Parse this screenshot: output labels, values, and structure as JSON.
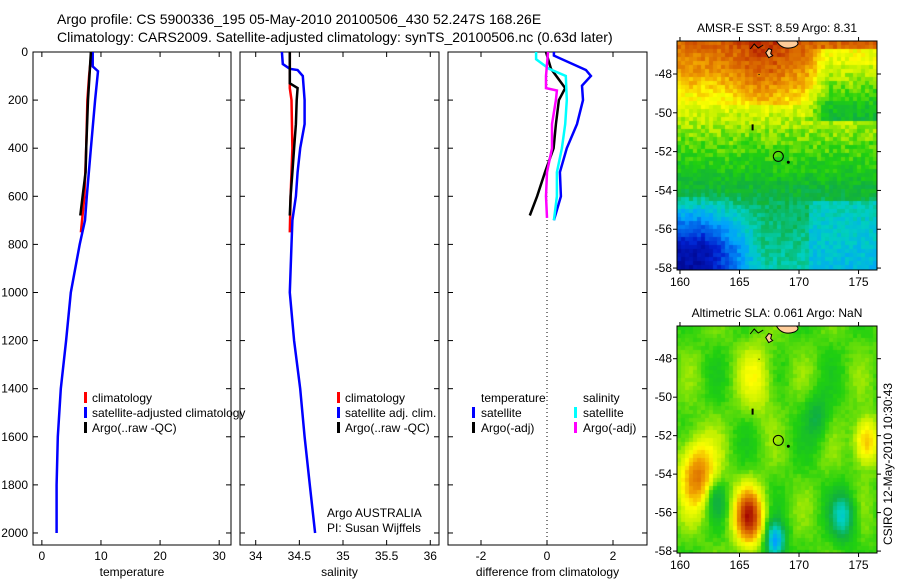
{
  "figure": {
    "title_line1": "Argo profile: CS 5900336_195 05-May-2010 20100506_430 52.247S 168.26E",
    "title_line2": "Climatology: CARS2009. Satellite-adjusted climatology: synTS_20100506.nc (0.63d later)",
    "footer_rotated": "CSIRO 12-May-2010 10:30:43",
    "credit_line1": "Argo AUSTRALIA",
    "credit_line2": "PI: Susan Wijffels"
  },
  "colors": {
    "climatology": "#ff0000",
    "satellite": "#0000ff",
    "argo": "#000000",
    "sal_satellite": "#00ffff",
    "sal_argo": "#ff00ff"
  },
  "chart_data": [
    {
      "type": "line",
      "id": "temperature",
      "xlabel": "temperature",
      "ylabel": "",
      "xlim": [
        -1.5,
        32
      ],
      "ylim": [
        0,
        2050
      ],
      "y_reversed": true,
      "xticks": [
        0,
        10,
        20,
        30
      ],
      "xtick_labels": [
        "0",
        "10",
        "20",
        "30"
      ],
      "yticks": [
        0,
        200,
        400,
        600,
        800,
        1000,
        1200,
        1400,
        1600,
        1800,
        2000
      ],
      "ytick_labels": [
        "0",
        "200",
        "400",
        "600",
        "800",
        "1000",
        "1200",
        "1400",
        "1600",
        "1800",
        "2000"
      ],
      "legend": [
        "climatology",
        "satellite-adjusted climatology",
        "Argo(..raw -QC)"
      ],
      "series": [
        {
          "name": "climatology",
          "color": "#ff0000",
          "depth": [
            0,
            100,
            200,
            400,
            600,
            750
          ],
          "values": [
            8.4,
            8.0,
            7.7,
            7.5,
            7.2,
            6.6
          ]
        },
        {
          "name": "satellite-adjusted climatology",
          "color": "#0000ff",
          "depth": [
            0,
            60,
            80,
            200,
            400,
            600,
            700,
            800,
            1000,
            1200,
            1400,
            1600,
            1800,
            2000
          ],
          "values": [
            8.6,
            8.6,
            9.5,
            9.0,
            8.3,
            7.6,
            7.3,
            6.4,
            4.9,
            4.1,
            3.2,
            2.7,
            2.5,
            2.5
          ]
        },
        {
          "name": "Argo(..raw -QC)",
          "color": "#000000",
          "depth": [
            0,
            200,
            400,
            500,
            600,
            680
          ],
          "values": [
            8.3,
            7.8,
            7.5,
            7.4,
            6.9,
            6.5
          ]
        }
      ]
    },
    {
      "type": "line",
      "id": "salinity",
      "xlabel": "salinity",
      "xlim": [
        33.82,
        36.1
      ],
      "ylim": [
        0,
        2050
      ],
      "y_reversed": true,
      "xticks": [
        34,
        34.5,
        35,
        35.5,
        36
      ],
      "xtick_labels": [
        "34",
        "34.5",
        "35",
        "35.5",
        "36"
      ],
      "legend": [
        "climatology",
        "satellite adj. clim.",
        "Argo(..raw -QC)"
      ],
      "series": [
        {
          "name": "climatology",
          "color": "#ff0000",
          "depth": [
            0,
            150,
            200,
            400,
            600,
            750
          ],
          "values": [
            34.39,
            34.39,
            34.41,
            34.42,
            34.4,
            34.39
          ]
        },
        {
          "name": "satellite adj. clim.",
          "color": "#0000ff",
          "depth": [
            0,
            50,
            70,
            75,
            100,
            200,
            300,
            400,
            500,
            600,
            700,
            800,
            1000,
            1200,
            1400,
            1600,
            1800,
            2000
          ],
          "values": [
            34.3,
            34.31,
            34.39,
            34.48,
            34.54,
            34.56,
            34.56,
            34.51,
            34.48,
            34.46,
            34.42,
            34.41,
            34.39,
            34.44,
            34.51,
            34.56,
            34.62,
            34.68
          ]
        },
        {
          "name": "Argo(..raw -QC)",
          "color": "#000000",
          "depth": [
            0,
            130,
            150,
            200,
            300,
            400,
            500,
            600,
            680
          ],
          "values": [
            34.39,
            34.39,
            34.48,
            34.47,
            34.46,
            34.44,
            34.42,
            34.4,
            34.39
          ]
        }
      ]
    },
    {
      "type": "line",
      "id": "difference",
      "xlabel": "difference from climatology",
      "xlim": [
        -3,
        3.03
      ],
      "ylim": [
        0,
        2050
      ],
      "y_reversed": true,
      "xticks": [
        -2,
        0,
        2
      ],
      "xtick_labels": [
        "-2",
        "0",
        "2"
      ],
      "zero_line": "dotted",
      "legend_headers": [
        "temperature",
        "salinity"
      ],
      "legend": [
        "satellite",
        "Argo(-adj)",
        "satellite",
        "Argo(-adj)"
      ],
      "series": [
        {
          "name": "temperature satellite",
          "color": "#0000ff",
          "depth": [
            0,
            15,
            75,
            100,
            140,
            200,
            300,
            400,
            500,
            600,
            700
          ],
          "values": [
            0.21,
            0.21,
            1.18,
            1.33,
            1.06,
            1.09,
            0.91,
            0.6,
            0.39,
            0.42,
            0.21
          ]
        },
        {
          "name": "temperature Argo(-adj)",
          "color": "#000000",
          "depth": [
            0,
            70,
            150,
            200,
            300,
            400,
            500,
            600,
            680
          ],
          "values": [
            -0.03,
            0.12,
            0.55,
            0.36,
            0.27,
            0.2,
            -0.06,
            -0.3,
            -0.52
          ]
        },
        {
          "name": "salinity satellite",
          "color": "#00ffff",
          "depth": [
            0,
            30,
            70,
            100,
            200,
            300,
            400,
            500,
            600,
            700
          ],
          "values": [
            -0.33,
            -0.33,
            0.06,
            0.57,
            0.6,
            0.55,
            0.45,
            0.3,
            0.3,
            0.21
          ]
        },
        {
          "name": "salinity Argo(-adj)",
          "color": "#ff00ff",
          "depth": [
            0,
            100,
            150,
            160,
            200,
            300,
            400,
            500,
            600,
            690
          ],
          "values": [
            0.03,
            -0.03,
            -0.03,
            0.3,
            0.27,
            0.15,
            0.15,
            0.0,
            -0.03,
            0.0
          ]
        }
      ]
    },
    {
      "type": "heatmap",
      "id": "sst_map",
      "title": "AMSR-E SST: 8.59 Argo: 8.31",
      "xlim": [
        159.75,
        176.55
      ],
      "ylim": [
        -58.1,
        -46.3
      ],
      "xticks": [
        160,
        165,
        170,
        175
      ],
      "xtick_labels": [
        "160",
        "165",
        "170",
        "175"
      ],
      "yticks": [
        -48,
        -50,
        -52,
        -54,
        -56,
        -58
      ],
      "ytick_labels": [
        "-48",
        "-50",
        "-52",
        "-54",
        "-56",
        "-58"
      ],
      "argo_position": [
        168.26,
        -52.247
      ]
    },
    {
      "type": "heatmap",
      "id": "sla_map",
      "title": "Altimetric SLA: 0.061 Argo: NaN",
      "xlim": [
        159.75,
        176.55
      ],
      "ylim": [
        -58.1,
        -46.3
      ],
      "xticks": [
        160,
        165,
        170,
        175
      ],
      "xtick_labels": [
        "160",
        "165",
        "170",
        "175"
      ],
      "yticks": [
        -48,
        -50,
        -52,
        -54,
        -56,
        -58
      ],
      "ytick_labels": [
        "-48",
        "-50",
        "-52",
        "-54",
        "-56",
        "-58"
      ],
      "argo_position": [
        168.26,
        -52.247
      ]
    }
  ]
}
